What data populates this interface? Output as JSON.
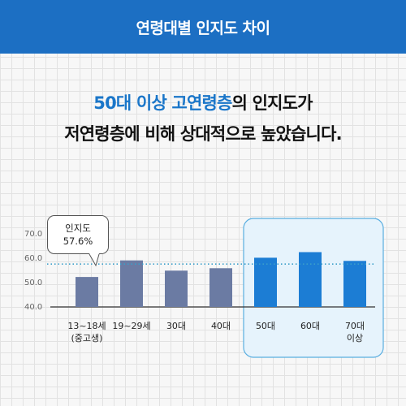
{
  "header": {
    "title": "연령대별 인지도 차이"
  },
  "headline": {
    "line1_highlight": "50대 이상 고연령층",
    "line1_rest": "의 인지도가",
    "line2": "저연령층에 비해 상대적으로 높았습니다."
  },
  "callout": {
    "label": "인지도",
    "value": "57.6%"
  },
  "colors": {
    "header": "#1c6fc3",
    "bar_young": "#6b7ba3",
    "bar_old": "#1c7dd4",
    "highlight_panel": "#e6f3fc",
    "reference_line": "#3a9ec9"
  },
  "chart_data": {
    "type": "bar",
    "categories": [
      "13~18세\n(중고생)",
      "19~29세",
      "30대",
      "40대",
      "50대",
      "60대",
      "70대\n이상"
    ],
    "values": [
      52.3,
      59.1,
      54.9,
      55.9,
      60.2,
      62.5,
      58.9
    ],
    "highlight": [
      "50대",
      "60대",
      "70대\n이상"
    ],
    "reference_value": 57.6,
    "yticks": [
      "40.0",
      "50.0",
      "60.0",
      "70.0"
    ],
    "ylim": [
      40,
      72
    ],
    "grid": false
  }
}
